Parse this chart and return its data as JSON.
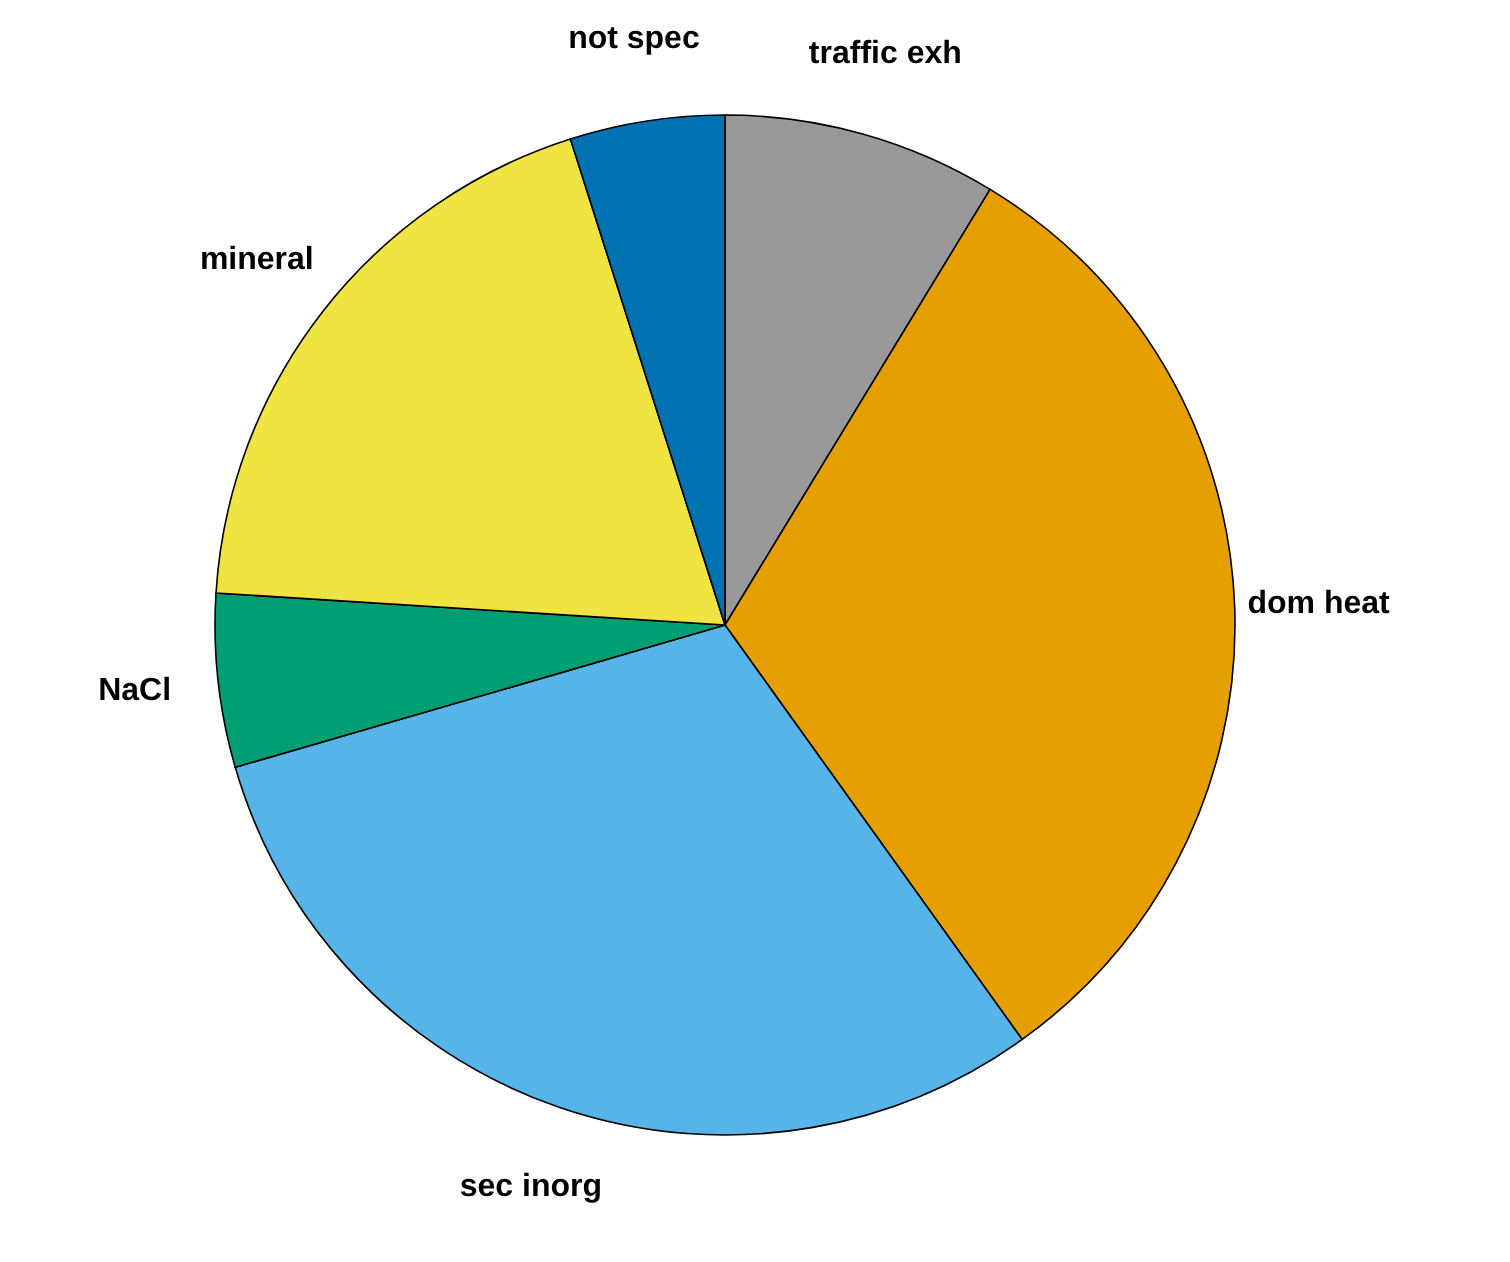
{
  "chart_data": {
    "type": "pie",
    "categories": [
      "traffic exh",
      "dom heat",
      "sec inorg",
      "NaCl",
      "mineral",
      "not spec"
    ],
    "values": [
      8.7,
      31.4,
      30.4,
      5.5,
      19.1,
      4.9
    ],
    "colors": [
      "#999999",
      "#e69f00",
      "#56b4e9",
      "#009e73",
      "#f0e442",
      "#0072b2"
    ]
  }
}
